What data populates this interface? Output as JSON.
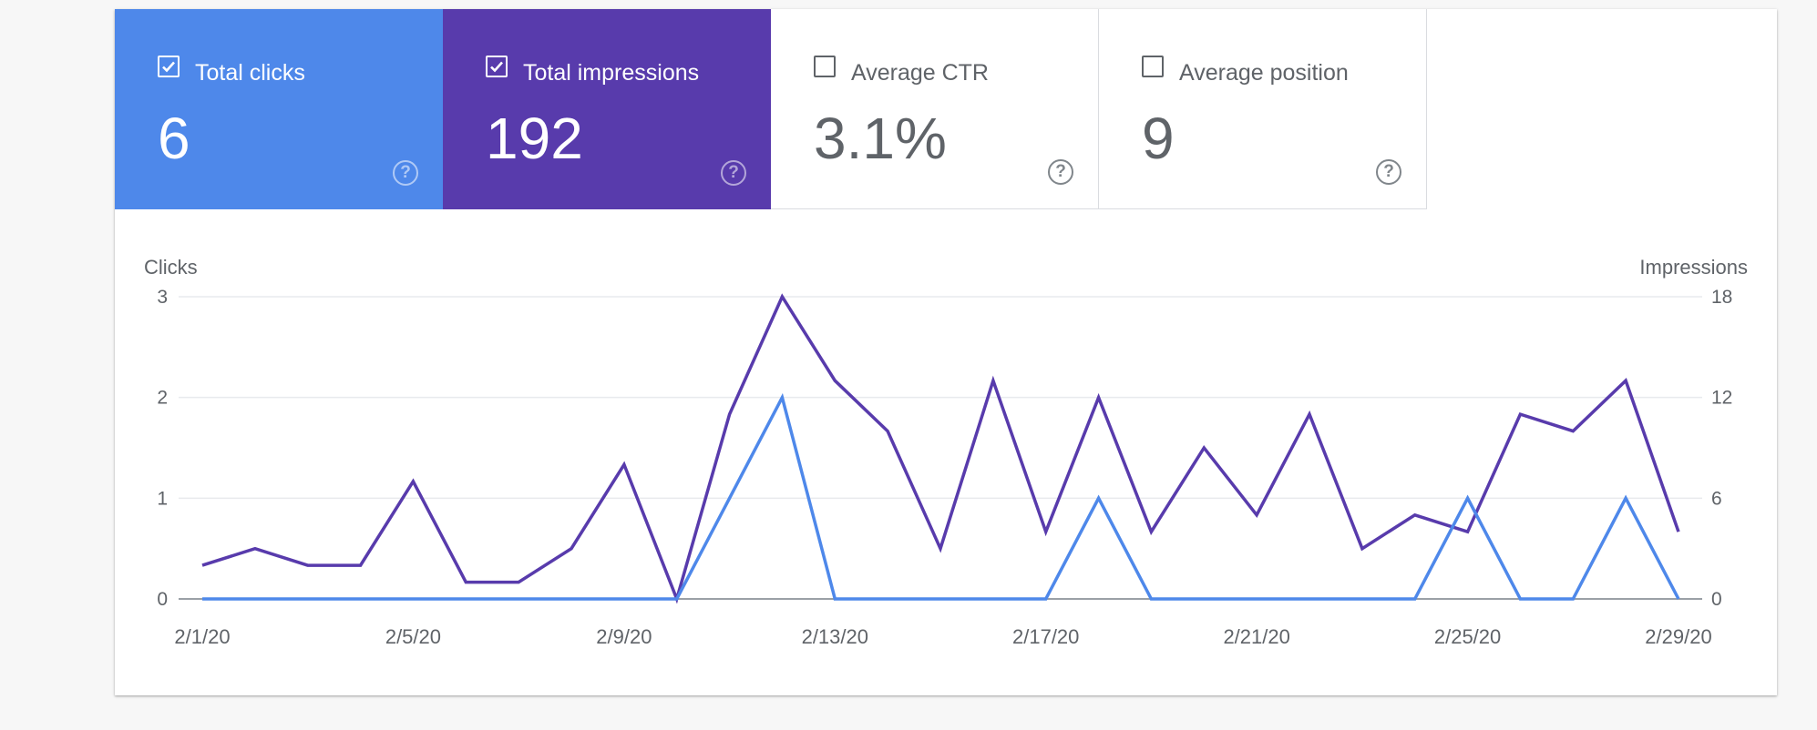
{
  "metrics": [
    {
      "label": "Total clicks",
      "value": "6",
      "checked": true,
      "color": "#4e88ea",
      "help": "?"
    },
    {
      "label": "Total impressions",
      "value": "192",
      "checked": true,
      "color": "#583bac",
      "help": "?"
    },
    {
      "label": "Average CTR",
      "value": "3.1%",
      "checked": false,
      "color": "#ffffff",
      "help": "?"
    },
    {
      "label": "Average position",
      "value": "9",
      "checked": false,
      "color": "#ffffff",
      "help": "?"
    }
  ],
  "chart_data": {
    "type": "line",
    "left_axis_title": "Clicks",
    "right_axis_title": "Impressions",
    "left_ticks": [
      "0",
      "1",
      "2",
      "3"
    ],
    "right_ticks": [
      "0",
      "6",
      "12",
      "18"
    ],
    "left_ylim": [
      0,
      3
    ],
    "right_ylim": [
      0,
      18
    ],
    "grid": true,
    "x": [
      "2/1/20",
      "2/2/20",
      "2/3/20",
      "2/4/20",
      "2/5/20",
      "2/6/20",
      "2/7/20",
      "2/8/20",
      "2/9/20",
      "2/10/20",
      "2/11/20",
      "2/12/20",
      "2/13/20",
      "2/14/20",
      "2/15/20",
      "2/16/20",
      "2/17/20",
      "2/18/20",
      "2/19/20",
      "2/20/20",
      "2/21/20",
      "2/22/20",
      "2/23/20",
      "2/24/20",
      "2/25/20",
      "2/26/20",
      "2/27/20",
      "2/28/20",
      "2/29/20"
    ],
    "x_tick_labels": [
      "2/1/20",
      "2/5/20",
      "2/9/20",
      "2/13/20",
      "2/17/20",
      "2/21/20",
      "2/25/20",
      "2/29/20"
    ],
    "series": [
      {
        "axis": "right",
        "color": "#583bac",
        "values": [
          2,
          3,
          2,
          2,
          7,
          1,
          1,
          3,
          8,
          0,
          11,
          18,
          13,
          10,
          3,
          13,
          4,
          12,
          4,
          9,
          5,
          11,
          3,
          5,
          4,
          11,
          10,
          13,
          4
        ]
      },
      {
        "axis": "left",
        "color": "#4e88ea",
        "values": [
          0,
          0,
          0,
          0,
          0,
          0,
          0,
          0,
          0,
          0,
          1,
          2,
          0,
          0,
          0,
          0,
          0,
          1,
          0,
          0,
          0,
          0,
          0,
          0,
          1,
          0,
          0,
          1,
          0
        ]
      }
    ]
  }
}
